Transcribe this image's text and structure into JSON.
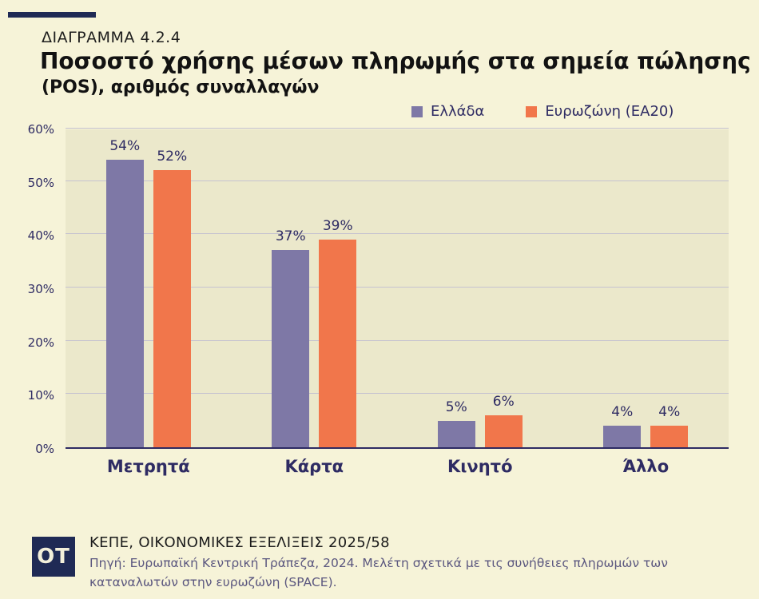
{
  "header": {
    "kicker": "ΔΙΑΓΡΑΜΜΑ 4.2.4",
    "title_line1": "Ποσοστό χρήσης μέσων πληρωμής στα σημεία πώλησης",
    "title_line2": "(POS), αριθμός συναλλαγών"
  },
  "chart_data": {
    "type": "bar",
    "categories": [
      "Μετρητά",
      "Κάρτα",
      "Κινητό",
      "Άλλο"
    ],
    "series": [
      {
        "name": "Ελλάδα",
        "color": "#7e78a6",
        "values": [
          54,
          37,
          5,
          4
        ]
      },
      {
        "name": "Ευρωζώνη (ΕΑ20)",
        "color": "#f1764b",
        "values": [
          52,
          39,
          6,
          4
        ]
      }
    ],
    "value_suffix": "%",
    "ylim": [
      0,
      60
    ],
    "yticks": [
      "0%",
      "10%",
      "20%",
      "30%",
      "40%",
      "50%",
      "60%"
    ],
    "grid": true,
    "legend_position": "top-right",
    "title": "Ποσοστό χρήσης μέσων πληρωμής στα σημεία πώλησης (POS), αριθμός συναλλαγών",
    "xlabel": "",
    "ylabel": ""
  },
  "footer": {
    "logo_text": "OT",
    "publication": "ΚΕΠΕ, ΟΙΚΟΝΟΜΙΚΕΣ ΕΞΕΛΙΞΕΙΣ 2025/58",
    "source": "Πηγή: Ευρωπαϊκή Κεντρική Τράπεζα, 2024. Μελέτη σχετικά με τις συνήθειες πληρωμών των καταναλωτών στην ευρωζώνη (SPACE)."
  },
  "colors": {
    "background": "#f6f3d8",
    "plot_background": "#ebe8cb",
    "greece_bar": "#7e78a6",
    "eurozone_bar": "#f1764b",
    "navy_text": "#2e2b63",
    "accent_bar": "#1f2a55",
    "gridline": "#c5c2d0",
    "source_text": "#5b577f"
  }
}
